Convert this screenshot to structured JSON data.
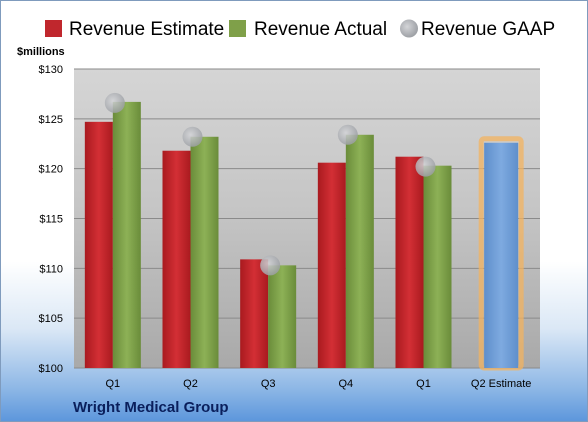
{
  "chart_data": {
    "type": "bar",
    "unit_label": "$millions",
    "company": "Wright Medical Group",
    "categories": [
      "Q1",
      "Q2",
      "Q3",
      "Q4",
      "Q1",
      "Q2 Estimate"
    ],
    "series": [
      {
        "name": "Revenue Estimate",
        "color": "#c0272d",
        "values": [
          124.7,
          121.8,
          110.9,
          120.6,
          121.2,
          null
        ]
      },
      {
        "name": "Revenue Actual",
        "color": "#7fa049",
        "values": [
          126.7,
          123.2,
          110.3,
          123.4,
          120.3,
          null
        ]
      },
      {
        "name": "Revenue GAAP",
        "color": "#b4b6ba",
        "values": [
          126.6,
          123.2,
          110.3,
          123.4,
          120.2,
          null
        ]
      },
      {
        "name": "Q2 Estimate",
        "color": "#6f9fd8",
        "highlight": "#f3b35f",
        "values": [
          null,
          null,
          null,
          null,
          null,
          122.6
        ]
      }
    ],
    "ylim": [
      100,
      130
    ],
    "yticks": [
      "$100",
      "$105",
      "$110",
      "$115",
      "$120",
      "$125",
      "$130"
    ],
    "grid": true,
    "legend_position": "top"
  }
}
